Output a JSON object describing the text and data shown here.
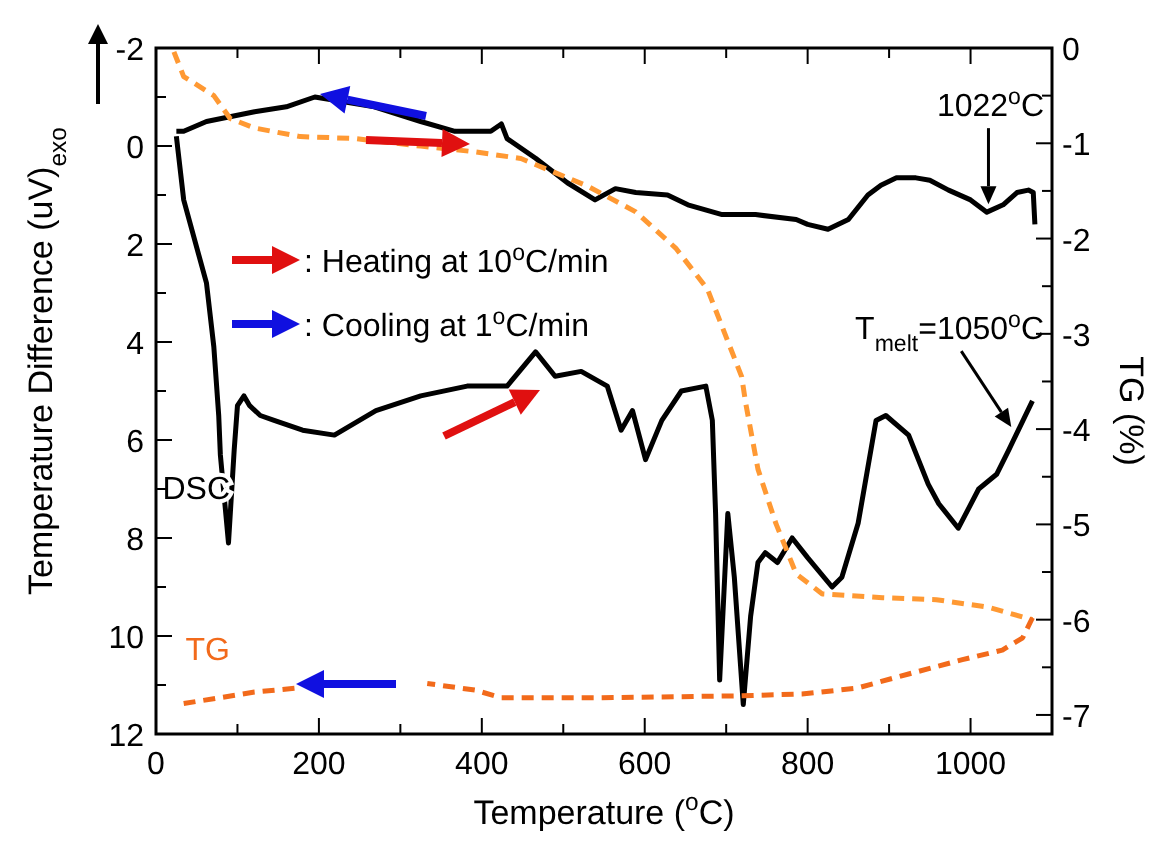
{
  "chart_data": {
    "type": "line",
    "xlabel": "Temperature ($^{o}$C)",
    "ylabel": "Temperature Difference (uV)$_{exo}$",
    "y2label": "TG (%)",
    "xlim": [
      0,
      1100
    ],
    "xticks": [
      0,
      {
        "value": 100,
        "label": null
      },
      200,
      {
        "value": 300,
        "label": null
      },
      400,
      {
        "value": 500,
        "label": null
      },
      600,
      {
        "value": 700,
        "label": null
      },
      800,
      {
        "value": 900,
        "label": null
      },
      1000,
      {
        "value": 1100,
        "label": null
      }
    ],
    "ylim": [
      12,
      -2
    ],
    "yticks": [
      -2,
      {
        "value": -1,
        "label": null
      },
      0,
      {
        "value": 1,
        "label": null
      },
      2,
      {
        "value": 3,
        "label": null
      },
      4,
      {
        "value": 5,
        "label": null
      },
      6,
      {
        "value": 7,
        "label": null
      },
      8,
      {
        "value": 9,
        "label": null
      },
      10,
      {
        "value": 11,
        "label": null
      },
      12
    ],
    "y2lim": [
      -7.2,
      0
    ],
    "y2ticks": [
      0,
      {
        "value": -0.5,
        "label": null
      },
      -1,
      {
        "value": -1.5,
        "label": null
      },
      -2,
      {
        "value": -2.5,
        "label": null
      },
      -3,
      {
        "value": -3.5,
        "label": null
      },
      -4,
      {
        "value": -4.5,
        "label": null
      },
      -5,
      {
        "value": -5.5,
        "label": null
      },
      -6,
      {
        "value": -6.5,
        "label": null
      },
      -7
    ],
    "grid": false,
    "series": [
      {
        "name": "DSC",
        "color": "#000000",
        "line_style": "solid",
        "x": [
          25,
          34,
          62,
          71,
          77,
          79,
          89,
          96,
          100,
          108,
          115,
          128,
          145,
          180,
          219,
          270,
          325,
          382,
          431,
          466,
          490,
          522,
          554,
          571,
          585,
          601,
          621,
          645,
          675,
          683,
          687,
          692,
          702,
          710,
          721,
          730,
          739,
          748,
          763,
          781,
          800,
          830,
          842,
          862,
          884,
          896,
          924,
          948,
          961,
          985,
          1010,
          1032,
          1047,
          1076
        ],
        "values": [
          -0.2,
          1.1,
          2.8,
          4.1,
          5.5,
          6.3,
          8.1,
          6.2,
          5.3,
          5.1,
          5.3,
          5.5,
          5.6,
          5.8,
          5.9,
          5.4,
          5.1,
          4.9,
          4.9,
          4.2,
          4.7,
          4.6,
          4.9,
          5.8,
          5.4,
          6.4,
          5.6,
          5.0,
          4.9,
          5.6,
          7.5,
          10.9,
          7.5,
          8.8,
          11.4,
          9.6,
          8.5,
          8.3,
          8.5,
          8.0,
          8.4,
          9.0,
          8.8,
          7.7,
          5.6,
          5.5,
          5.9,
          6.9,
          7.3,
          7.8,
          7.0,
          6.7,
          6.2,
          5.2
        ]
      },
      {
        "color": "#000000",
        "line_style": "solid",
        "x": [
          1079,
          1077,
          1071,
          1057,
          1040,
          1020,
          1000,
          973,
          950,
          933,
          909,
          890,
          874,
          850,
          825,
          800,
          786,
          736,
          695,
          653,
          628,
          589,
          564,
          539,
          505,
          466,
          431,
          424,
          411,
          367,
          325,
          268,
          195,
          160,
          121,
          62,
          34,
          25
        ],
        "values": [
          1.6,
          0.95,
          0.9,
          0.95,
          1.2,
          1.35,
          1.1,
          0.9,
          0.7,
          0.65,
          0.65,
          0.8,
          1.0,
          1.5,
          1.7,
          1.6,
          1.5,
          1.4,
          1.4,
          1.2,
          1.0,
          0.95,
          0.87,
          1.1,
          0.75,
          0.25,
          -0.15,
          -0.45,
          -0.3,
          -0.3,
          -0.5,
          -0.8,
          -1.0,
          -0.8,
          -0.7,
          -0.5,
          -0.3,
          -0.3
        ]
      },
      {
        "color": "#ff9933",
        "axis": "y2",
        "line_style": "dashed",
        "x": [
          22,
          34,
          71,
          91,
          121,
          177,
          244,
          325,
          392,
          448,
          530,
          589,
          638,
          677,
          719,
          724,
          739,
          761,
          786,
          818,
          892,
          958,
          1022,
          1076
        ],
        "values": [
          -0.04,
          -0.3,
          -0.5,
          -0.74,
          -0.84,
          -0.93,
          -0.95,
          -1.03,
          -1.09,
          -1.16,
          -1.45,
          -1.72,
          -2.1,
          -2.53,
          -3.45,
          -3.73,
          -4.42,
          -4.99,
          -5.52,
          -5.73,
          -5.77,
          -5.79,
          -5.87,
          -6.0
        ]
      },
      {
        "name": "TG",
        "color": "#f26a1b",
        "axis": "y2",
        "line_style": "dashed",
        "x": [
          1076,
          1064,
          1039,
          990,
          924,
          860,
          793,
          712,
          547,
          424,
          392,
          333,
          251,
          170,
          121,
          34
        ],
        "values": [
          -5.98,
          -6.19,
          -6.32,
          -6.42,
          -6.57,
          -6.72,
          -6.78,
          -6.8,
          -6.82,
          -6.82,
          -6.74,
          -6.67,
          null,
          -6.72,
          -6.76,
          -6.88
        ]
      }
    ],
    "annotations": [
      {
        "text": "1022$^{o}$C",
        "x": 1022,
        "y": 1.35
      },
      {
        "text": "T$_{melt}$=1050$^{o}$C",
        "x": 1050,
        "y": 5.9
      },
      ": Heating at 10$^{o}$C/min",
      ": Cooling at 1$^{o}$C/min"
    ]
  }
}
